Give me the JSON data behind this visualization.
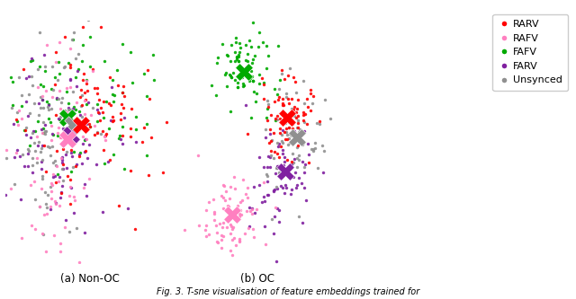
{
  "colors": {
    "RARV": "#ff0000",
    "RAFV": "#ff80c0",
    "FAFV": "#00aa00",
    "FARV": "#8020a0",
    "Unsynced": "#909090"
  },
  "legend_labels": [
    "RARV",
    "RAFV",
    "FAFV",
    "FARV",
    "Unsynced"
  ],
  "seed": 42,
  "background": "#ffffff",
  "dot_size": 6,
  "centroid_size": 200,
  "subtitle_left": "(a) Non-OC",
  "subtitle_right": "(b) OC"
}
